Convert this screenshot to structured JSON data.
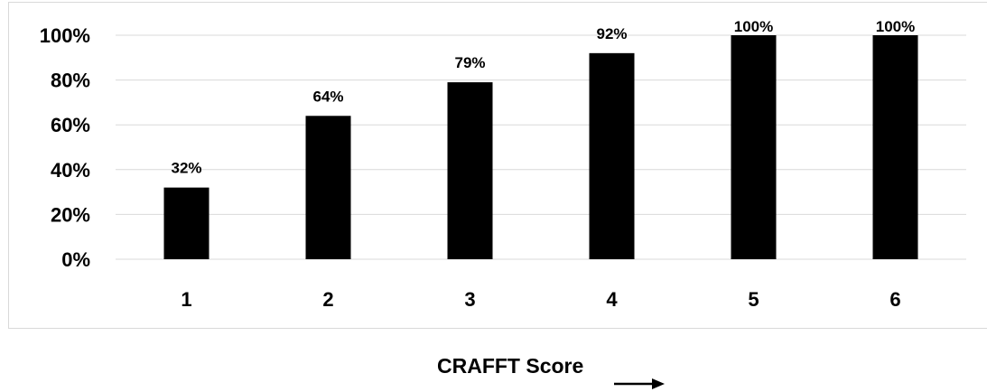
{
  "chart_data": {
    "type": "bar",
    "categories": [
      "1",
      "2",
      "3",
      "4",
      "5",
      "6"
    ],
    "values": [
      32,
      64,
      79,
      92,
      100,
      100
    ],
    "data_labels": [
      "32%",
      "64%",
      "79%",
      "92%",
      "100%",
      "100%"
    ],
    "title": "",
    "xlabel": "CRAFFT Score",
    "ylabel": "",
    "ylim": [
      0,
      100
    ],
    "y_ticks": [
      0,
      20,
      40,
      60,
      80,
      100
    ],
    "y_tick_labels": [
      "0%",
      "20%",
      "40%",
      "60%",
      "80%",
      "100%"
    ],
    "grid": true,
    "legend": "none",
    "bar_color": "#000000",
    "grid_color": "#d9d9d9"
  }
}
